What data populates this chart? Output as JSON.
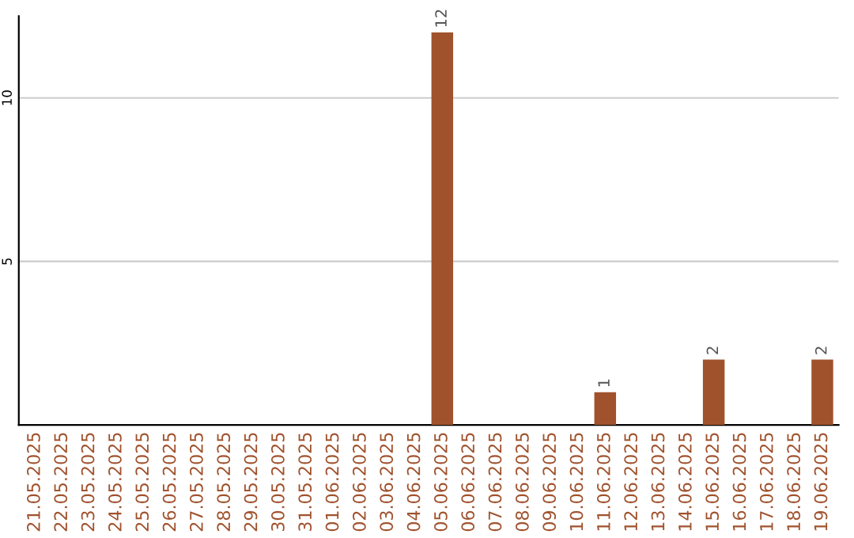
{
  "chart_data": {
    "type": "bar",
    "categories": [
      "21.05.2025",
      "22.05.2025",
      "23.05.2025",
      "24.05.2025",
      "25.05.2025",
      "26.05.2025",
      "27.05.2025",
      "28.05.2025",
      "29.05.2025",
      "30.05.2025",
      "31.05.2025",
      "01.06.2025",
      "02.06.2025",
      "03.06.2025",
      "04.06.2025",
      "05.06.2025",
      "06.06.2025",
      "07.06.2025",
      "08.06.2025",
      "09.06.2025",
      "10.06.2025",
      "11.06.2025",
      "12.06.2025",
      "13.06.2025",
      "14.06.2025",
      "15.06.2025",
      "16.06.2025",
      "17.06.2025",
      "18.06.2025",
      "19.06.2025"
    ],
    "values": [
      0,
      0,
      0,
      0,
      0,
      0,
      0,
      0,
      0,
      0,
      0,
      0,
      0,
      0,
      0,
      12,
      0,
      0,
      0,
      0,
      0,
      1,
      0,
      0,
      0,
      2,
      0,
      0,
      0,
      2
    ],
    "value_labels": [
      null,
      null,
      null,
      null,
      null,
      null,
      null,
      null,
      null,
      null,
      null,
      null,
      null,
      null,
      null,
      "12",
      null,
      null,
      null,
      null,
      null,
      "1",
      null,
      null,
      null,
      "2",
      null,
      null,
      null,
      "2"
    ],
    "color": "#a0522d",
    "ylim": [
      0,
      12.5
    ],
    "yticks": [
      5,
      10
    ],
    "grid": "y",
    "legend": false
  }
}
